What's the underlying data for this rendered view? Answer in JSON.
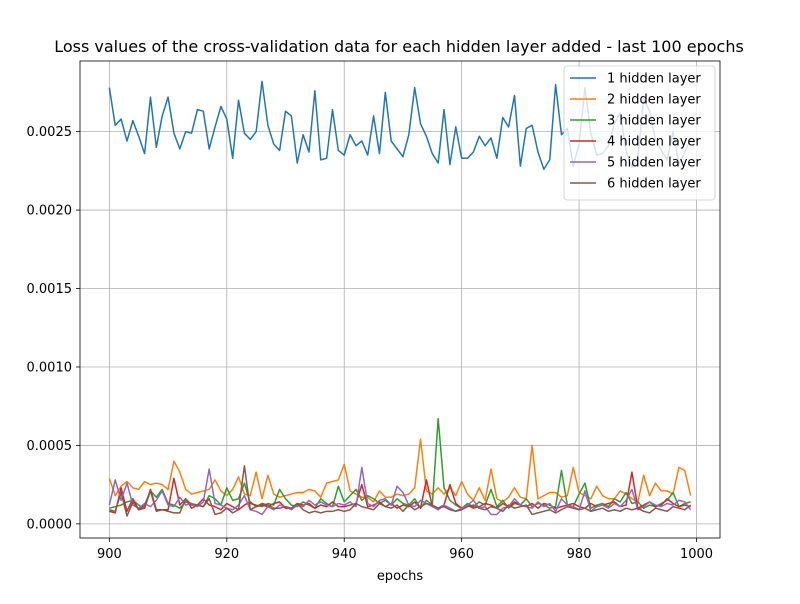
{
  "chart_data": {
    "type": "line",
    "title": "Loss values of the cross-validation data for each hidden layer added - last 100 epochs",
    "xlabel": "epochs",
    "ylabel": "",
    "xlim": [
      895,
      1004
    ],
    "ylim": [
      -9e-05,
      0.00295
    ],
    "xticks": [
      900,
      920,
      940,
      960,
      980,
      1000
    ],
    "xtick_labels": [
      "900",
      "920",
      "940",
      "960",
      "980",
      "1000"
    ],
    "yticks": [
      0.0,
      0.0005,
      0.001,
      0.0015,
      0.002,
      0.0025
    ],
    "ytick_labels": [
      "0.0000",
      "0.0005",
      "0.0010",
      "0.0015",
      "0.0020",
      "0.0025"
    ],
    "grid": true,
    "legend_position": "top-right",
    "x_start": 900,
    "series": [
      {
        "name": "1 hidden layer",
        "color": "#1f77b4",
        "values": [
          0.00278,
          0.00254,
          0.00258,
          0.00244,
          0.00257,
          0.00247,
          0.00236,
          0.00272,
          0.0024,
          0.0026,
          0.00272,
          0.00249,
          0.00239,
          0.0025,
          0.00249,
          0.00264,
          0.00263,
          0.00239,
          0.00253,
          0.00266,
          0.00258,
          0.00233,
          0.0027,
          0.00249,
          0.00245,
          0.0025,
          0.00282,
          0.00254,
          0.00242,
          0.00238,
          0.00263,
          0.0026,
          0.0023,
          0.00248,
          0.00237,
          0.00276,
          0.00232,
          0.00233,
          0.00264,
          0.00238,
          0.00235,
          0.00248,
          0.00241,
          0.00244,
          0.00235,
          0.0026,
          0.00236,
          0.00275,
          0.00244,
          0.00239,
          0.00234,
          0.00248,
          0.00278,
          0.00255,
          0.00247,
          0.00236,
          0.0023,
          0.00264,
          0.00229,
          0.00253,
          0.00233,
          0.00233,
          0.00237,
          0.00247,
          0.00241,
          0.00246,
          0.00233,
          0.00259,
          0.00253,
          0.00273,
          0.00228,
          0.00252,
          0.00254,
          0.00237,
          0.00226,
          0.00232,
          0.0028,
          0.00248,
          0.00252,
          0.00228,
          0.00242,
          0.00278,
          0.00249,
          0.00235,
          0.00236,
          0.00241,
          0.00255,
          0.00262,
          0.00238,
          0.00227,
          0.00233,
          0.00271,
          0.00263,
          0.00245,
          0.00238,
          0.00232,
          0.0025,
          0.00229,
          0.00237,
          0.00245
        ]
      },
      {
        "name": "2 hidden layer",
        "color": "#ff7f0e",
        "values": [
          0.00029,
          0.00018,
          0.00024,
          0.00027,
          0.00023,
          0.00022,
          0.00027,
          0.00025,
          0.00026,
          0.00025,
          0.00022,
          0.0004,
          0.00033,
          0.00022,
          0.00019,
          0.0002,
          0.00021,
          0.00022,
          0.00028,
          0.00021,
          0.00018,
          0.00022,
          0.0003,
          0.00019,
          0.00018,
          0.00033,
          0.00016,
          0.00031,
          0.00019,
          0.00017,
          0.00018,
          0.00019,
          0.0002,
          0.0002,
          0.00022,
          0.00021,
          0.00017,
          0.00026,
          0.00027,
          0.00028,
          0.00038,
          0.00021,
          0.00019,
          0.00017,
          0.00017,
          0.00014,
          0.00021,
          0.00017,
          0.00017,
          0.00019,
          0.00018,
          0.00019,
          0.00023,
          0.00054,
          0.00021,
          0.00019,
          0.00023,
          0.00019,
          0.00023,
          0.00018,
          0.00027,
          0.00019,
          0.00015,
          0.00023,
          0.00015,
          0.00035,
          0.00016,
          0.00014,
          0.00017,
          0.00023,
          0.00017,
          0.00016,
          0.0005,
          0.00016,
          0.00018,
          0.0002,
          0.0002,
          0.00017,
          0.00018,
          0.00036,
          0.0002,
          0.00018,
          0.00016,
          0.00024,
          0.00018,
          0.00016,
          0.00016,
          0.00021,
          0.00019,
          0.00016,
          0.00014,
          0.00031,
          0.00018,
          0.00026,
          0.00021,
          0.00021,
          0.00019,
          0.00036,
          0.00034,
          0.00018
        ]
      },
      {
        "name": "3 hidden layer",
        "color": "#2ca02c",
        "values": [
          0.0001,
          0.00011,
          0.00012,
          0.00014,
          0.00015,
          0.00012,
          0.0001,
          0.00021,
          0.00017,
          0.00022,
          0.00013,
          0.00012,
          0.0001,
          0.00014,
          0.00013,
          0.00012,
          0.00011,
          0.00018,
          0.00016,
          0.00012,
          0.00023,
          0.00015,
          0.00016,
          0.00026,
          0.00013,
          0.00012,
          0.00011,
          0.00013,
          0.00012,
          0.00022,
          0.00016,
          0.00012,
          0.00011,
          0.00014,
          0.00012,
          0.0001,
          0.00016,
          0.00013,
          0.00011,
          0.00024,
          0.00014,
          0.00018,
          0.00022,
          0.00015,
          0.00018,
          0.00016,
          0.00013,
          0.00015,
          0.00012,
          0.00016,
          0.00013,
          0.00012,
          0.00016,
          0.0001,
          0.00015,
          0.00012,
          0.00067,
          0.00023,
          0.00015,
          0.00012,
          0.0001,
          0.00013,
          0.00011,
          0.00014,
          0.00012,
          0.00022,
          0.00011,
          0.00015,
          0.0001,
          0.00013,
          0.00012,
          0.00016,
          0.00011,
          0.00013,
          0.00012,
          0.0001,
          0.00011,
          0.00034,
          0.00012,
          0.00011,
          0.00019,
          0.00026,
          0.0001,
          0.00012,
          0.00013,
          0.00011,
          0.00016,
          0.00014,
          0.0002,
          0.00013,
          0.00014,
          0.0001,
          0.00012,
          0.00011,
          0.00013,
          0.00015,
          0.0002,
          0.00011,
          0.00013,
          0.00014
        ]
      },
      {
        "name": "4 hidden layer",
        "color": "#d62728",
        "values": [
          8e-05,
          7e-05,
          0.00023,
          8e-05,
          0.00016,
          9e-05,
          0.0001,
          0.00022,
          9e-05,
          9e-05,
          9e-05,
          0.00029,
          0.00012,
          0.00016,
          0.0001,
          0.00012,
          0.00016,
          0.00012,
          0.00011,
          9e-05,
          0.00013,
          0.00011,
          9e-05,
          0.00012,
          0.00014,
          0.00011,
          0.00012,
          0.00011,
          0.00013,
          0.00014,
          0.0001,
          0.0001,
          0.00013,
          0.00012,
          0.00013,
          0.0001,
          0.00012,
          0.00011,
          0.00014,
          0.00011,
          0.00011,
          0.00012,
          0.00013,
          0.00025,
          0.00011,
          0.00012,
          0.00014,
          0.00011,
          0.00013,
          0.0001,
          0.00012,
          0.00011,
          0.00014,
          0.0001,
          0.00028,
          0.00011,
          0.0001,
          0.00012,
          0.00025,
          0.00013,
          0.0001,
          0.00012,
          0.0001,
          0.00011,
          0.00013,
          0.00012,
          0.0001,
          0.00013,
          0.00011,
          0.00014,
          0.00012,
          0.00011,
          0.00013,
          0.0001,
          0.00013,
          0.00012,
          0.0001,
          0.00011,
          0.00012,
          0.00013,
          0.00011,
          0.0001,
          0.00013,
          0.00011,
          0.00012,
          0.00013,
          0.00014,
          0.00011,
          0.00012,
          0.00033,
          0.0001,
          0.00012,
          0.00014,
          0.00011,
          0.00012,
          0.00016,
          0.00013,
          0.00011,
          0.00012,
          0.00011
        ]
      },
      {
        "name": "5 hidden layer",
        "color": "#9467bd",
        "values": [
          0.00012,
          0.00028,
          0.00015,
          0.00026,
          0.00012,
          0.0001,
          0.00013,
          0.00011,
          0.00015,
          0.00021,
          0.00012,
          0.00011,
          0.00017,
          0.00012,
          0.00013,
          0.00011,
          0.00014,
          0.00035,
          0.00013,
          0.00012,
          0.0001,
          9e-05,
          0.00012,
          0.00018,
          9e-05,
          8e-05,
          6e-05,
          0.00011,
          9e-05,
          0.00012,
          0.00011,
          9e-05,
          0.00012,
          0.00011,
          0.00015,
          0.00012,
          0.00014,
          0.00012,
          0.00011,
          0.00013,
          0.00012,
          0.00014,
          0.00011,
          0.00036,
          0.00013,
          0.00011,
          0.00015,
          0.00016,
          0.00012,
          0.00024,
          0.0002,
          0.00012,
          0.00011,
          0.00015,
          0.00013,
          0.00011,
          9e-05,
          0.00012,
          0.0001,
          8e-05,
          0.0001,
          0.00012,
          0.00015,
          0.0001,
          0.00011,
          6e-05,
          6e-05,
          0.0001,
          0.00011,
          0.00016,
          0.00012,
          0.00011,
          0.0001,
          0.00014,
          0.00011,
          0.00013,
          8e-05,
          0.00016,
          0.00012,
          0.00011,
          9e-05,
          0.00021,
          8e-05,
          0.00011,
          0.00012,
          0.0001,
          0.00013,
          0.00011,
          0.00015,
          0.00022,
          9e-05,
          0.00011,
          0.00014,
          0.00012,
          0.00011,
          0.00013,
          0.00012,
          0.00015,
          0.00014,
          9e-05
        ]
      },
      {
        "name": "6 hidden layer",
        "color": "#8c564b",
        "values": [
          9e-05,
          8e-05,
          0.0002,
          5e-05,
          0.00014,
          9e-05,
          0.00012,
          0.00021,
          8e-05,
          9e-05,
          8e-05,
          7e-05,
          7e-05,
          0.00016,
          0.00012,
          0.00012,
          0.00011,
          0.00016,
          6e-05,
          7e-05,
          0.0001,
          7e-05,
          9e-05,
          0.00037,
          9e-05,
          0.00011,
          0.00013,
          0.00012,
          0.0001,
          0.0001,
          0.00011,
          0.0001,
          0.00013,
          9e-05,
          7e-05,
          8e-05,
          7e-05,
          8e-05,
          8e-05,
          9e-05,
          8e-05,
          9e-05,
          0.00013,
          0.00011,
          0.0001,
          9e-05,
          0.00013,
          0.00011,
          0.0001,
          0.00012,
          8e-05,
          0.00012,
          9e-05,
          0.00011,
          0.00013,
          0.00012,
          0.0001,
          0.00011,
          9e-05,
          8e-05,
          9e-05,
          0.00011,
          0.00012,
          0.0001,
          9e-05,
          0.00011,
          0.0001,
          8e-05,
          0.00012,
          0.0001,
          0.00011,
          0.00012,
          6e-05,
          7e-05,
          8e-05,
          9e-05,
          7e-05,
          9e-05,
          0.00011,
          0.0001,
          9e-05,
          0.0001,
          8e-05,
          9e-05,
          0.0001,
          8e-05,
          9e-05,
          8e-05,
          0.0001,
          9e-05,
          0.0001,
          8e-05,
          7e-05,
          0.0001,
          9e-05,
          8e-05,
          0.00011,
          0.0001,
          9e-05,
          0.00012
        ]
      }
    ]
  }
}
